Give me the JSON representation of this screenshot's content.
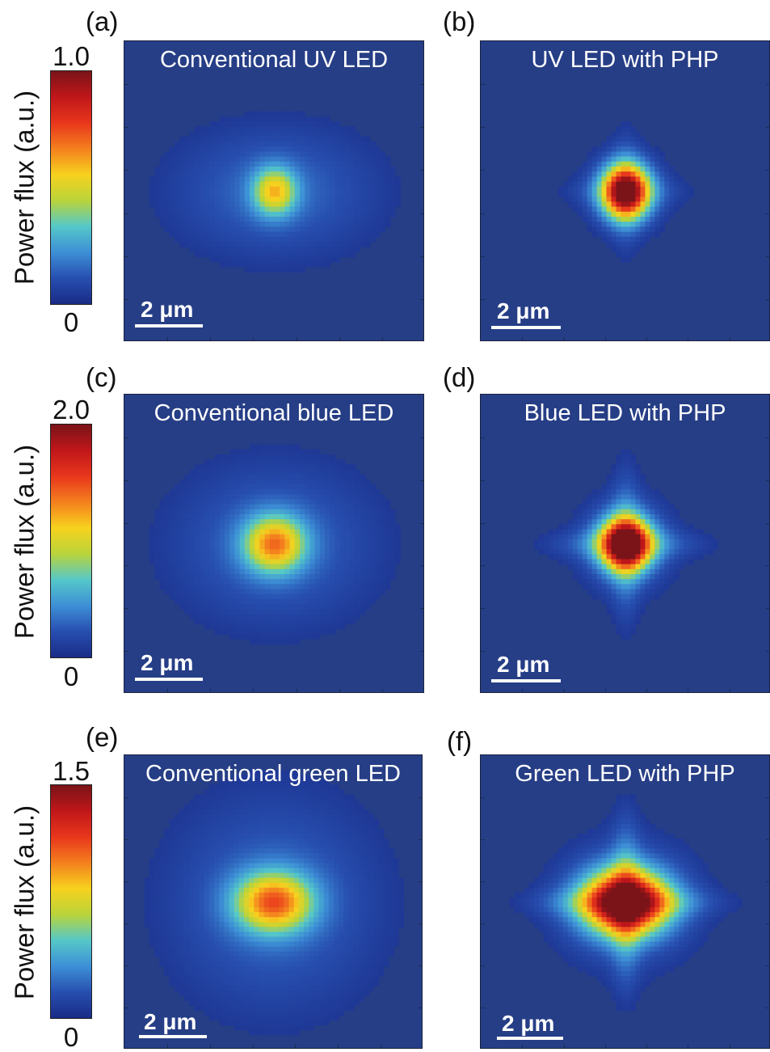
{
  "figure": {
    "colorbar_label": "Power flux (a.u.)",
    "colormap": [
      "#7a1418",
      "#c0161a",
      "#e8361c",
      "#f4801e",
      "#f7d21e",
      "#b9d43a",
      "#55c8c8",
      "#3d8fd6",
      "#274fb0",
      "#1a2b86"
    ]
  },
  "chart_data": [
    {
      "type": "heatmap",
      "panel": "(a)",
      "title": "Conventional UV LED",
      "scale_bar": "2 μm",
      "colorbar": {
        "min_label": "0",
        "max_label": "1.0",
        "range": [
          0,
          1.0
        ]
      },
      "background": "#263e86",
      "field": {
        "peak": 0.45,
        "core": [
          0.05,
          0.055
        ],
        "halo": [
          0.25,
          0.16
        ],
        "cross": 0
      }
    },
    {
      "type": "heatmap",
      "panel": "(b)",
      "title": "UV LED with PHP",
      "scale_bar": "2 μm",
      "colorbar": {
        "min_label": "",
        "max_label": "",
        "range": [
          0,
          1.0
        ]
      },
      "background": "#263e86",
      "field": {
        "peak": 0.92,
        "core": [
          0.055,
          0.06
        ],
        "halo": [
          0.1,
          0.1
        ],
        "cross": 0.12
      }
    },
    {
      "type": "heatmap",
      "panel": "(c)",
      "title": "Conventional blue LED",
      "scale_bar": "2 μm",
      "colorbar": {
        "min_label": "0",
        "max_label": "2.0",
        "range": [
          0,
          2.0
        ]
      },
      "background": "#263e86",
      "field": {
        "peak": 0.55,
        "core": [
          0.07,
          0.065
        ],
        "halo": [
          0.25,
          0.2
        ],
        "cross": 0
      }
    },
    {
      "type": "heatmap",
      "panel": "(d)",
      "title": "Blue LED with PHP",
      "scale_bar": "2 μm",
      "colorbar": {
        "min_label": "",
        "max_label": "",
        "range": [
          0,
          2.0
        ]
      },
      "background": "#263e86",
      "field": {
        "peak": 0.98,
        "core": [
          0.06,
          0.06
        ],
        "halo": [
          0.12,
          0.12
        ],
        "cross": 0.25
      }
    },
    {
      "type": "heatmap",
      "panel": "(e)",
      "title": "Conventional green LED",
      "scale_bar": "2 μm",
      "colorbar": {
        "min_label": "0",
        "max_label": "1.5",
        "range": [
          0,
          1.5
        ]
      },
      "background": "#263e86",
      "field": {
        "peak": 0.6,
        "core": [
          0.09,
          0.07
        ],
        "halo": [
          0.26,
          0.27
        ],
        "cross": 0
      }
    },
    {
      "type": "heatmap",
      "panel": "(f)",
      "title": "Green LED with PHP",
      "scale_bar": "2 μm",
      "colorbar": {
        "min_label": "",
        "max_label": "",
        "range": [
          0,
          1.5
        ]
      },
      "background": "#263e86",
      "field": {
        "peak": 0.95,
        "core": [
          0.1,
          0.075
        ],
        "halo": [
          0.18,
          0.16
        ],
        "cross": 0.35
      }
    }
  ]
}
